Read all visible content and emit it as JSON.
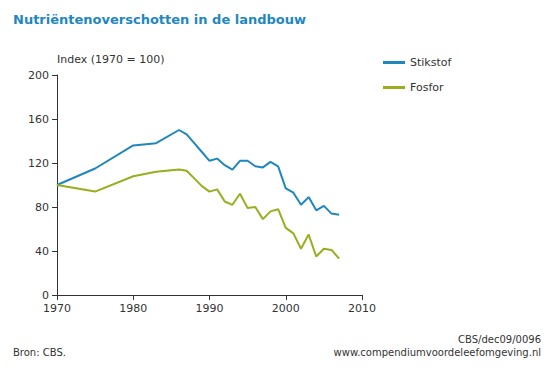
{
  "chart_data": {
    "type": "line",
    "title": "Nutriëntenoverschotten in de landbouw",
    "y_label": "Index (1970 = 100)",
    "source": "Bron: CBS.",
    "annotations": [
      "CBS/dec09/0096",
      "www.compendiumvoordeleefomgeving.nl"
    ],
    "x": [
      1970,
      1975,
      1980,
      1983,
      1986,
      1987,
      1988,
      1989,
      1990,
      1991,
      1992,
      1993,
      1994,
      1995,
      1996,
      1997,
      1998,
      1999,
      2000,
      2001,
      2002,
      2003,
      2004,
      2005,
      2006,
      2007
    ],
    "series": [
      {
        "name": "Stikstof",
        "color": "#1f87bf",
        "values": [
          100,
          115,
          136,
          138,
          150,
          146,
          138,
          130,
          122,
          124,
          118,
          114,
          122,
          122,
          117,
          116,
          121,
          117,
          97,
          93,
          82,
          89,
          77,
          81,
          74,
          73
        ]
      },
      {
        "name": "Fosfor",
        "color": "#9aad1e",
        "values": [
          100,
          94,
          108,
          112,
          114,
          113,
          106,
          99,
          94,
          96,
          85,
          82,
          92,
          79,
          80,
          69,
          76,
          78,
          61,
          56,
          42,
          55,
          35,
          42,
          41,
          33
        ]
      }
    ],
    "xlim": [
      1970,
      2010
    ],
    "xticks": [
      1970,
      1980,
      1990,
      2000,
      2010
    ],
    "ylim": [
      0,
      200
    ],
    "yticks": [
      0,
      40,
      80,
      120,
      160,
      200
    ],
    "grid": false,
    "legend": "right"
  }
}
